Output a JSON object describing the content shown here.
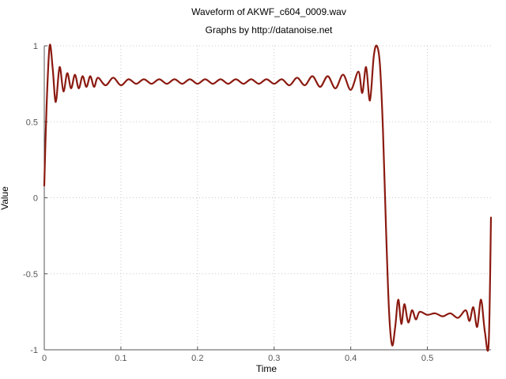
{
  "chart_data": {
    "type": "line",
    "title": "Waveform of AKWF_c604_0009.wav",
    "subtitle": "Graphs by http://datanoise.net",
    "xlabel": "Time",
    "ylabel": "Value",
    "xlim": [
      0,
      0.583
    ],
    "ylim": [
      -1,
      1
    ],
    "x_ticks": [
      {
        "value": 0,
        "label": "0"
      },
      {
        "value": 0.1,
        "label": "0.1"
      },
      {
        "value": 0.2,
        "label": "0.2"
      },
      {
        "value": 0.3,
        "label": "0.3"
      },
      {
        "value": 0.4,
        "label": "0.4"
      },
      {
        "value": 0.5,
        "label": "0.5"
      }
    ],
    "y_ticks": [
      {
        "value": 1,
        "label": "1"
      },
      {
        "value": 0.5,
        "label": "0.5"
      },
      {
        "value": 0,
        "label": "0"
      },
      {
        "value": -0.5,
        "label": "-0.5"
      },
      {
        "value": -1,
        "label": "-1"
      }
    ],
    "grid": true,
    "line_color": "#8b1a10",
    "series": [
      {
        "x": [
          0,
          0.003,
          0.007,
          0.011,
          0.015,
          0.02,
          0.025,
          0.03,
          0.035,
          0.04,
          0.045,
          0.05,
          0.055,
          0.06,
          0.065,
          0.07,
          0.08,
          0.09,
          0.1,
          0.11,
          0.12,
          0.13,
          0.14,
          0.15,
          0.16,
          0.17,
          0.18,
          0.19,
          0.2,
          0.21,
          0.22,
          0.23,
          0.24,
          0.25,
          0.26,
          0.27,
          0.28,
          0.29,
          0.3,
          0.31,
          0.32,
          0.33,
          0.34,
          0.35,
          0.36,
          0.37,
          0.38,
          0.39,
          0.4,
          0.41,
          0.415,
          0.42,
          0.425,
          0.43,
          0.434,
          0.438,
          0.442,
          0.446,
          0.45,
          0.454,
          0.458,
          0.462,
          0.466,
          0.47,
          0.475,
          0.48,
          0.485,
          0.49,
          0.5,
          0.51,
          0.52,
          0.53,
          0.54,
          0.55,
          0.555,
          0.56,
          0.565,
          0.57,
          0.575,
          0.58,
          0.583
        ],
        "y": [
          0.08,
          0.6,
          1.0,
          0.85,
          0.63,
          0.86,
          0.7,
          0.82,
          0.72,
          0.81,
          0.72,
          0.8,
          0.73,
          0.8,
          0.73,
          0.79,
          0.74,
          0.79,
          0.74,
          0.78,
          0.75,
          0.78,
          0.75,
          0.78,
          0.75,
          0.78,
          0.75,
          0.78,
          0.75,
          0.78,
          0.75,
          0.78,
          0.75,
          0.78,
          0.75,
          0.78,
          0.75,
          0.78,
          0.75,
          0.78,
          0.74,
          0.79,
          0.74,
          0.8,
          0.73,
          0.8,
          0.72,
          0.81,
          0.71,
          0.83,
          0.69,
          0.86,
          0.64,
          0.93,
          1.0,
          0.88,
          0.45,
          -0.2,
          -0.75,
          -0.97,
          -0.85,
          -0.67,
          -0.83,
          -0.7,
          -0.82,
          -0.74,
          -0.8,
          -0.75,
          -0.77,
          -0.76,
          -0.78,
          -0.76,
          -0.79,
          -0.74,
          -0.81,
          -0.72,
          -0.85,
          -0.67,
          -0.88,
          -0.96,
          -0.13
        ]
      }
    ]
  }
}
